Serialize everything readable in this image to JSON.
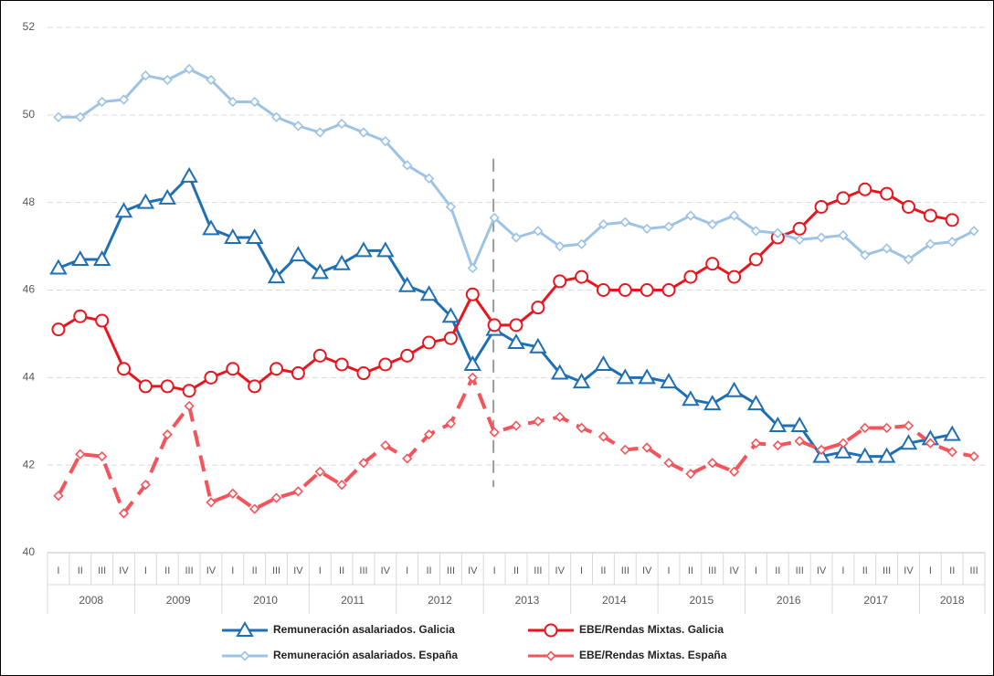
{
  "chart_data": {
    "type": "line",
    "categories": [
      "I",
      "II",
      "III",
      "IV",
      "I",
      "II",
      "III",
      "IV",
      "I",
      "II",
      "III",
      "IV",
      "I",
      "II",
      "III",
      "IV",
      "I",
      "II",
      "III",
      "IV",
      "I",
      "II",
      "III",
      "IV",
      "I",
      "II",
      "III",
      "IV",
      "I",
      "II",
      "III",
      "IV",
      "I",
      "II",
      "III",
      "IV",
      "I",
      "II",
      "III",
      "IV",
      "I",
      "II",
      "III"
    ],
    "years": [
      "2008",
      "2009",
      "2010",
      "2011",
      "2012",
      "2013",
      "2014",
      "2015",
      "2016",
      "2017",
      "2018"
    ],
    "ylim": [
      40,
      52
    ],
    "yticks": [
      40,
      42,
      44,
      46,
      48,
      50,
      52
    ],
    "grid": true,
    "series": [
      {
        "name": "Remuneración asalariados. Galicia",
        "color": "#1f6fb5",
        "marker": "triangle",
        "dash": "solid",
        "values": [
          46.5,
          46.7,
          46.7,
          47.8,
          48.0,
          48.1,
          48.6,
          47.4,
          47.2,
          47.2,
          46.3,
          46.8,
          46.4,
          46.6,
          46.9,
          46.9,
          46.1,
          45.9,
          45.4,
          44.3,
          45.1,
          44.8,
          44.7,
          44.1,
          43.9,
          44.3,
          44.0,
          44.0,
          43.9,
          43.5,
          43.4,
          43.7,
          43.4,
          42.9,
          42.9,
          42.2,
          42.3,
          42.2,
          42.2,
          42.5,
          42.6,
          42.7,
          null
        ]
      },
      {
        "name": "EBE/Rendas Mixtas. Galicia",
        "color": "#e8161e",
        "marker": "circle",
        "dash": "solid",
        "values": [
          45.1,
          45.4,
          45.3,
          44.2,
          43.8,
          43.8,
          43.7,
          44.0,
          44.2,
          43.8,
          44.2,
          44.1,
          44.5,
          44.3,
          44.1,
          44.3,
          44.5,
          44.8,
          44.9,
          45.9,
          45.2,
          45.2,
          45.6,
          46.2,
          46.3,
          46.0,
          46.0,
          46.0,
          46.0,
          46.3,
          46.6,
          46.3,
          46.7,
          47.2,
          47.4,
          47.9,
          48.1,
          48.3,
          48.2,
          47.9,
          47.7,
          47.6,
          null
        ]
      },
      {
        "name": "Remuneración asalariados. España",
        "color": "#9dc3e6",
        "marker": "diamond",
        "dash": "solid",
        "values": [
          49.95,
          49.95,
          50.3,
          50.35,
          50.9,
          50.8,
          51.05,
          50.8,
          50.3,
          50.3,
          49.95,
          49.75,
          49.6,
          49.8,
          49.6,
          49.4,
          48.85,
          48.55,
          47.9,
          46.5,
          47.65,
          47.2,
          47.35,
          47.0,
          47.05,
          47.5,
          47.55,
          47.4,
          47.45,
          47.7,
          47.5,
          47.7,
          47.35,
          47.3,
          47.15,
          47.2,
          47.25,
          46.8,
          46.95,
          46.7,
          47.05,
          47.1,
          47.35
        ]
      },
      {
        "name": "EBE/Rendas Mixtas. España",
        "color": "#f4545b",
        "marker": "diamond",
        "dash": "dashed",
        "values": [
          41.3,
          42.25,
          42.2,
          40.9,
          41.55,
          42.7,
          43.35,
          41.15,
          41.35,
          41.0,
          41.25,
          41.4,
          41.85,
          41.55,
          42.05,
          42.45,
          42.15,
          42.7,
          42.95,
          44.0,
          42.75,
          42.9,
          43.0,
          43.1,
          42.85,
          42.65,
          42.35,
          42.4,
          42.05,
          41.8,
          42.05,
          41.85,
          42.5,
          42.45,
          42.55,
          42.35,
          42.5,
          42.85,
          42.85,
          42.9,
          42.5,
          42.3,
          42.2
        ]
      }
    ]
  }
}
